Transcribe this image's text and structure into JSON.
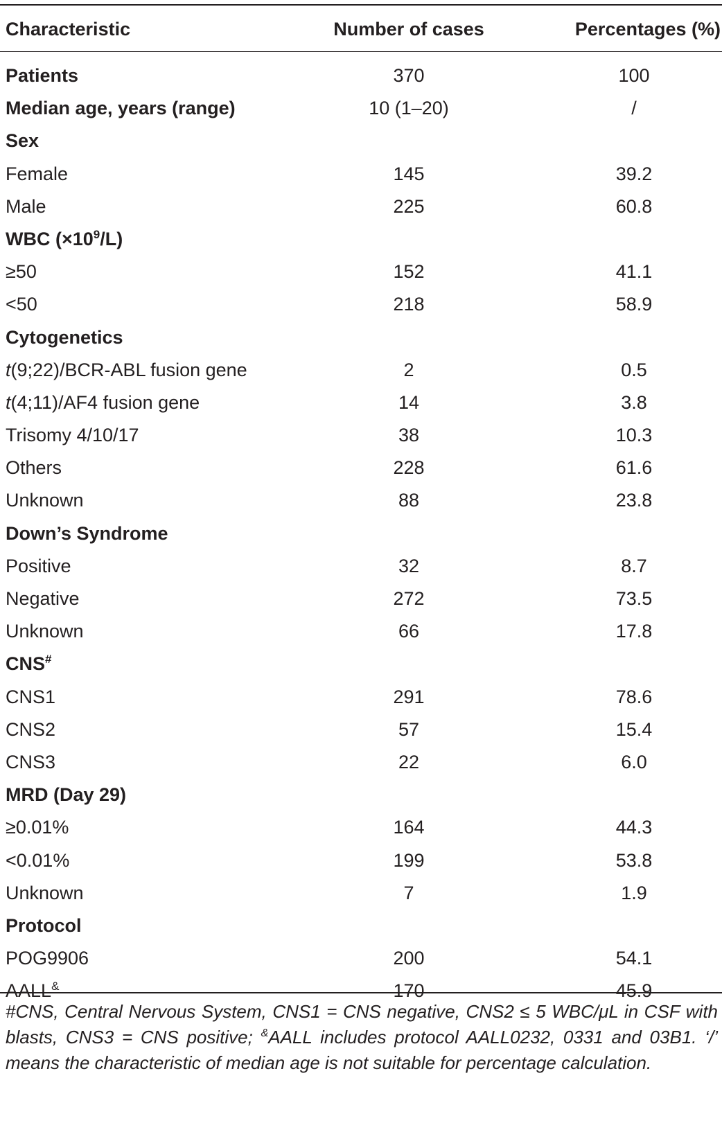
{
  "table": {
    "headers": {
      "characteristic": "Characteristic",
      "number": "Number of cases",
      "percentage": "Percentages (%)"
    },
    "rows": [
      {
        "type": "bold-row",
        "label": "Patients",
        "number": "370",
        "pct": "100"
      },
      {
        "type": "bold-row",
        "label": "Median age, years (range)",
        "number": "10 (1–20)",
        "pct": "/"
      },
      {
        "type": "group",
        "label": "Sex",
        "number": "",
        "pct": ""
      },
      {
        "type": "item",
        "label": "Female",
        "number": "145",
        "pct": "39.2"
      },
      {
        "type": "item",
        "label": "Male",
        "number": "225",
        "pct": "60.8"
      },
      {
        "type": "group",
        "label_pre": "WBC (×10",
        "label_sup": "9",
        "label_post": "/L)",
        "number": "",
        "pct": ""
      },
      {
        "type": "item",
        "label": "≥50",
        "number": "152",
        "pct": "41.1"
      },
      {
        "type": "item",
        "label": "<50",
        "number": "218",
        "pct": "58.9"
      },
      {
        "type": "group",
        "label": "Cytogenetics",
        "number": "",
        "pct": ""
      },
      {
        "type": "item",
        "label_ital": "t",
        "label_post": "(9;22)/BCR-ABL fusion gene",
        "number": "2",
        "pct": "0.5"
      },
      {
        "type": "item",
        "label_ital": "t",
        "label_post": "(4;11)/AF4 fusion gene",
        "number": "14",
        "pct": "3.8"
      },
      {
        "type": "item",
        "label": "Trisomy 4/10/17",
        "number": "38",
        "pct": "10.3"
      },
      {
        "type": "item",
        "label": "Others",
        "number": "228",
        "pct": "61.6"
      },
      {
        "type": "item",
        "label": "Unknown",
        "number": "88",
        "pct": "23.8"
      },
      {
        "type": "group",
        "label": "Down’s Syndrome",
        "number": "",
        "pct": ""
      },
      {
        "type": "item",
        "label": "Positive",
        "number": "32",
        "pct": "8.7"
      },
      {
        "type": "item",
        "label": "Negative",
        "number": "272",
        "pct": "73.5"
      },
      {
        "type": "item",
        "label": "Unknown",
        "number": "66",
        "pct": "17.8"
      },
      {
        "type": "group",
        "label_pre": "CNS",
        "label_sup": "#",
        "label_post": "",
        "number": "",
        "pct": ""
      },
      {
        "type": "item",
        "label": "CNS1",
        "number": "291",
        "pct": "78.6"
      },
      {
        "type": "item",
        "label": "CNS2",
        "number": "57",
        "pct": "15.4"
      },
      {
        "type": "item",
        "label": "CNS3",
        "number": "22",
        "pct": "6.0"
      },
      {
        "type": "group",
        "label": "MRD (Day 29)",
        "number": "",
        "pct": ""
      },
      {
        "type": "item",
        "label": "≥0.01%",
        "number": "164",
        "pct": "44.3"
      },
      {
        "type": "item",
        "label": "<0.01%",
        "number": "199",
        "pct": "53.8"
      },
      {
        "type": "item",
        "label": "Unknown",
        "number": "7",
        "pct": "1.9"
      },
      {
        "type": "group",
        "label": "Protocol",
        "number": "",
        "pct": ""
      },
      {
        "type": "item",
        "label": "POG9906",
        "number": "200",
        "pct": "54.1"
      },
      {
        "type": "item",
        "label_pre": "AALL",
        "label_sup": "&",
        "label_post": "",
        "number": "170",
        "pct": "45.9"
      }
    ]
  },
  "footnote": {
    "part1": "#CNS, Central Nervous System, CNS1 = CNS negative, CNS2 ≤ 5 WBC/μL in CSF with blasts, CNS3 = CNS positive; ",
    "sup": "&",
    "part2": "AALL includes protocol AALL0232, 0331 and 03B1. ‘/’ means the characteristic of median age is not suitable for percentage calculation."
  }
}
